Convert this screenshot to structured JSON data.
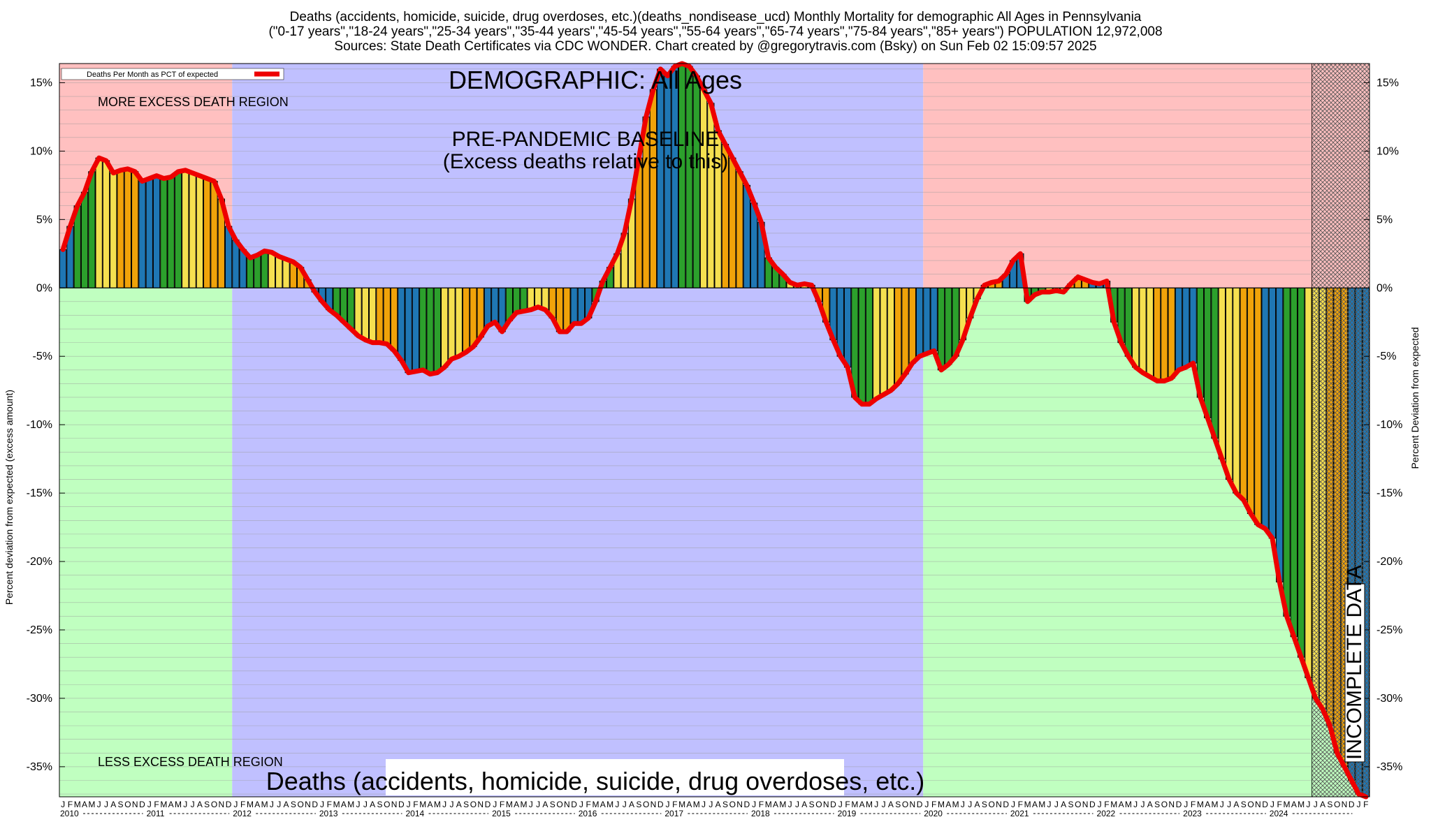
{
  "title": {
    "line1": "Deaths (accidents, homicide, suicide, drug overdoses, etc.)(deaths_nondisease_ucd) Monthly Mortality for demographic All Ages in Pennsylvania",
    "line2": "(\"0-17 years\",\"18-24 years\",\"25-34 years\",\"35-44 years\",\"45-54 years\",\"55-64 years\",\"65-74 years\",\"75-84 years\",\"85+ years\") POPULATION 12,972,008",
    "line3": "Sources: State Death Certificates via CDC WONDER.              Chart created by @gregorytravis.com (Bsky) on Sun Feb 02 15:09:57 2025"
  },
  "labels": {
    "demographic": "DEMOGRAPHIC: All Ages",
    "baseline_line1": "PRE-PANDEMIC BASELINE",
    "baseline_line2": "(Excess deaths relative to this)",
    "more_region": "MORE EXCESS DEATH REGION",
    "less_region": "LESS EXCESS DEATH REGION",
    "bottom_caption": "Deaths (accidents, homicide, suicide, drug overdoses, etc.)",
    "incomplete": "INCOMPLETE DATA",
    "legend": "Deaths Per Month as PCT of expected"
  },
  "colors": {
    "excess_region": "#ffc0c0",
    "less_region": "#c0ffc0",
    "baseline_region": "#c0c0ff",
    "line": "#ee0000",
    "bar_winter": "#1f77b4",
    "bar_spring": "#2ca02c",
    "bar_summer": "#f5e050",
    "bar_fall": "#f0a30a"
  },
  "chart_data": {
    "type": "bar",
    "series": [
      {
        "name": "Deaths Per Month as PCT of expected",
        "start": "2010-01",
        "end": "2024-12",
        "values": [
          2.8,
          4.5,
          6,
          7,
          8.5,
          9.5,
          9.3,
          8.4,
          8.6,
          8.7,
          8.5,
          7.8,
          8,
          8.2,
          8,
          8.1,
          8.5,
          8.6,
          8.4,
          8.2,
          8.0,
          7.8,
          6.5,
          4.5,
          3.5,
          2.8,
          2.2,
          2.4,
          2.7,
          2.6,
          2.3,
          2.1,
          1.9,
          1.5,
          0.6,
          -0.3,
          -1.0,
          -1.6,
          -2.0,
          -2.5,
          -3.0,
          -3.5,
          -3.8,
          -4.0,
          -4.0,
          -4.1,
          -4.6,
          -5.3,
          -6.2,
          -6.1,
          -6.0,
          -6.3,
          -6.2,
          -5.8,
          -5.2,
          -5.0,
          -4.7,
          -4.3,
          -3.6,
          -2.8,
          -2.5,
          -3.2,
          -2.4,
          -1.8,
          -1.7,
          -1.6,
          -1.4,
          -1.6,
          -2.2,
          -3.2,
          -3.2,
          -2.6,
          -2.6,
          -2.2,
          -1.0,
          0.5,
          1.5,
          2.5,
          4.0,
          6.5,
          9.5,
          12.5,
          14.5,
          16.0,
          15.5,
          16.2,
          16.4,
          16.2,
          15.5,
          14.5,
          13.5,
          11.5,
          10.5,
          9.5,
          8.5,
          7.5,
          6.2,
          4.8,
          2.2,
          1.5,
          1.0,
          0.4,
          0.2,
          0.3,
          0.2,
          -1.0,
          -2.5,
          -3.8,
          -5.0,
          -5.8,
          -8.0,
          -8.5,
          -8.5,
          -8.1,
          -7.8,
          -7.5,
          -7.0,
          -6.3,
          -5.5,
          -5.0,
          -4.8,
          -4.6,
          -6.0,
          -5.6,
          -5.0,
          -3.8,
          -2.2,
          -0.8,
          0.2,
          0.4,
          0.5,
          1.0,
          2.0,
          2.5,
          -1.0,
          -0.5,
          -0.3,
          -0.3,
          -0.2,
          -0.3,
          0.3,
          0.8,
          0.6,
          0.4,
          0.3,
          0.5,
          -2.5,
          -4.0,
          -5.0,
          -5.8,
          -6.2,
          -6.5,
          -6.8,
          -6.8,
          -6.6,
          -6.0,
          -5.8,
          -5.5,
          -8.0,
          -9.5,
          -11.0,
          -12.5,
          -14.0,
          -15.0,
          -15.5,
          -16.5,
          -17.3,
          -17.6,
          -18.3,
          -21.5,
          -24.0,
          -25.5,
          -27.0,
          -28.5,
          -30.0,
          -30.8,
          -32.0,
          -34.0,
          -35.0,
          -36.0,
          -37.0,
          -37.2
        ]
      }
    ],
    "x_start_year": 2010,
    "x_end_year": 2024,
    "month_letters": [
      "J",
      "F",
      "M",
      "A",
      "M",
      "J",
      "J",
      "A",
      "S",
      "O",
      "N",
      "D"
    ],
    "years": [
      "2010",
      "2011",
      "2012",
      "2013",
      "2014",
      "2015",
      "2016",
      "2017",
      "2018",
      "2019",
      "2020",
      "2021",
      "2022",
      "2023",
      "2024"
    ],
    "ylim": [
      -37.2,
      16.4
    ],
    "yticks": [
      15,
      10,
      5,
      0,
      -5,
      -10,
      -15,
      -20,
      -25,
      -30,
      -35
    ],
    "ytick_labels": [
      "15%",
      "10%",
      "5%",
      "0%",
      "-5%",
      "-10%",
      "-15%",
      "-20%",
      "-25%",
      "-30%",
      "-35%"
    ],
    "ylabel_left": "Percent deviation from expected (excess amount)",
    "ylabel_right": "Percent Deviation from expected",
    "baseline_period": [
      "2012-01",
      "2019-12"
    ],
    "incomplete_period": [
      "2024-07",
      "2024-12"
    ],
    "grid": true,
    "legend_position": "top-left"
  }
}
